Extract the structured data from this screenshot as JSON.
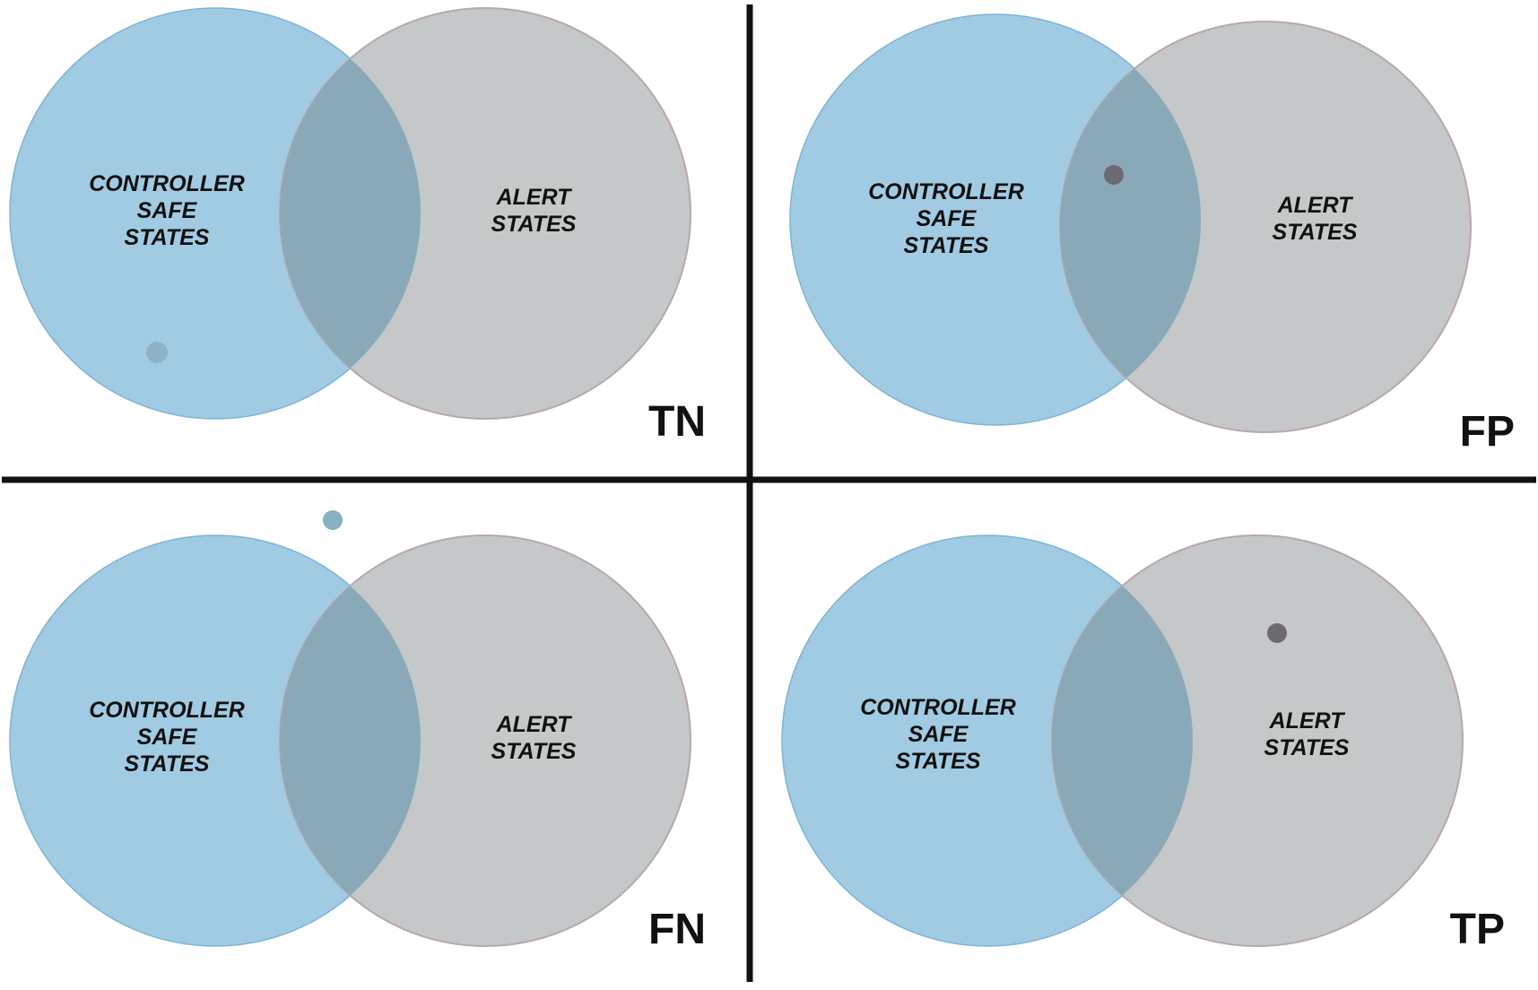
{
  "colors": {
    "background": "#ffffff",
    "safe_fill": "#a0cbe3",
    "safe_stroke": "#7fb4d6",
    "alert_fill": "#c4c8c9",
    "alert_stroke": "#b7a7b0",
    "overlap_fill": "#8aa9b8",
    "divider": "#111111",
    "text": "#111111"
  },
  "quadrants": [
    {
      "id": "tn",
      "label": "TN",
      "safe_set": {
        "lines": [
          "CONTROLLER",
          "SAFE",
          "STATES"
        ]
      },
      "alert_set": {
        "lines": [
          "ALERT",
          "STATES"
        ]
      },
      "state_point": {
        "region": "safe-only",
        "color": "#8fb3c4"
      }
    },
    {
      "id": "fp",
      "label": "FP",
      "safe_set": {
        "lines": [
          "CONTROLLER",
          "SAFE",
          "STATES"
        ]
      },
      "alert_set": {
        "lines": [
          "ALERT",
          "STATES"
        ]
      },
      "state_point": {
        "region": "overlap",
        "color": "#6d6a72"
      }
    },
    {
      "id": "fn",
      "label": "FN",
      "safe_set": {
        "lines": [
          "CONTROLLER",
          "SAFE",
          "STATES"
        ]
      },
      "alert_set": {
        "lines": [
          "ALERT",
          "STATES"
        ]
      },
      "state_point": {
        "region": "outside",
        "color": "#87b0c2"
      }
    },
    {
      "id": "tp",
      "label": "TP",
      "safe_set": {
        "lines": [
          "CONTROLLER",
          "SAFE",
          "STATES"
        ]
      },
      "alert_set": {
        "lines": [
          "ALERT",
          "STATES"
        ]
      },
      "state_point": {
        "region": "alert-only",
        "color": "#6d6a72"
      }
    }
  ]
}
